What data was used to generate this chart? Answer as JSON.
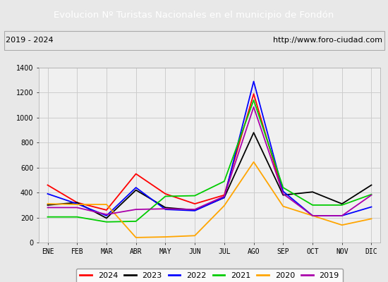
{
  "title": "Evolucion Nº Turistas Nacionales en el municipio de Fondón",
  "subtitle_left": "2019 - 2024",
  "subtitle_right": "http://www.foro-ciudad.com",
  "title_bg_color": "#4a86c8",
  "title_text_color": "#ffffff",
  "months": [
    "ENE",
    "FEB",
    "MAR",
    "ABR",
    "MAY",
    "JUN",
    "JUL",
    "AGO",
    "SEP",
    "OCT",
    "NOV",
    "DIC"
  ],
  "series": {
    "2024": {
      "color": "#ff0000",
      "data": [
        460,
        320,
        260,
        550,
        390,
        310,
        380,
        1190,
        390,
        null,
        null,
        null
      ]
    },
    "2023": {
      "color": "#000000",
      "data": [
        300,
        320,
        195,
        420,
        280,
        260,
        360,
        880,
        380,
        405,
        310,
        460
      ]
    },
    "2022": {
      "color": "#0000ff",
      "data": [
        390,
        310,
        215,
        440,
        265,
        255,
        360,
        1290,
        410,
        215,
        215,
        285
      ]
    },
    "2021": {
      "color": "#00cc00",
      "data": [
        205,
        205,
        165,
        170,
        370,
        375,
        490,
        1140,
        440,
        300,
        300,
        385
      ]
    },
    "2020": {
      "color": "#ffa500",
      "data": [
        310,
        305,
        305,
        40,
        45,
        55,
        295,
        645,
        290,
        215,
        140,
        190
      ]
    },
    "2019": {
      "color": "#aa00aa",
      "data": [
        280,
        280,
        225,
        265,
        270,
        265,
        370,
        1085,
        390,
        215,
        215,
        380
      ]
    }
  },
  "ylim": [
    0,
    1400
  ],
  "yticks": [
    0,
    200,
    400,
    600,
    800,
    1000,
    1200,
    1400
  ],
  "grid_color": "#cccccc",
  "bg_color": "#e8e8e8",
  "plot_bg": "#f0f0f0",
  "legend_order": [
    "2024",
    "2023",
    "2022",
    "2021",
    "2020",
    "2019"
  ]
}
